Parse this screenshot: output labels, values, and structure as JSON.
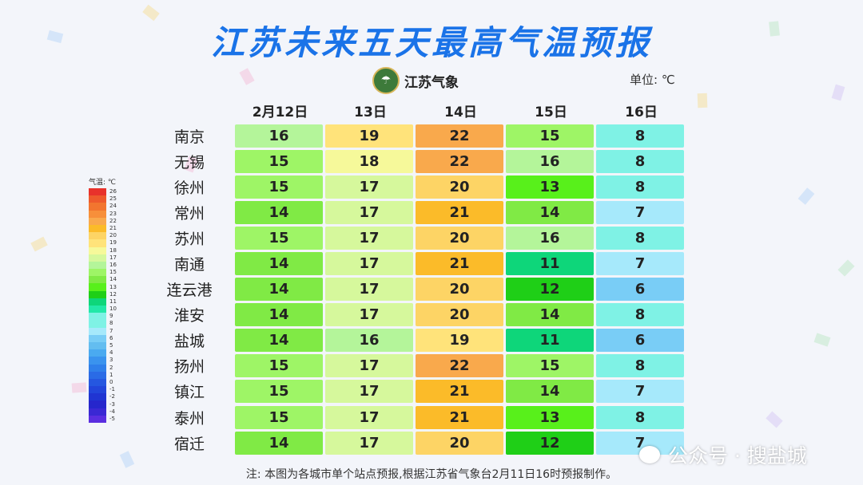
{
  "title": "江苏未来五天最高气温预报",
  "logo_text": "江苏气象",
  "unit": "单位: ℃",
  "days": [
    "2月12日",
    "13日",
    "14日",
    "15日",
    "16日"
  ],
  "cities": [
    {
      "name": "南京",
      "temps": [
        16,
        19,
        22,
        15,
        8
      ]
    },
    {
      "name": "无锡",
      "temps": [
        15,
        18,
        22,
        16,
        8
      ]
    },
    {
      "name": "徐州",
      "temps": [
        15,
        17,
        20,
        13,
        8
      ]
    },
    {
      "name": "常州",
      "temps": [
        14,
        17,
        21,
        14,
        7
      ]
    },
    {
      "name": "苏州",
      "temps": [
        15,
        17,
        20,
        16,
        8
      ]
    },
    {
      "name": "南通",
      "temps": [
        14,
        17,
        21,
        11,
        7
      ]
    },
    {
      "name": "连云港",
      "temps": [
        14,
        17,
        20,
        12,
        6
      ]
    },
    {
      "name": "淮安",
      "temps": [
        14,
        17,
        20,
        14,
        8
      ]
    },
    {
      "name": "盐城",
      "temps": [
        14,
        16,
        19,
        11,
        6
      ]
    },
    {
      "name": "扬州",
      "temps": [
        15,
        17,
        22,
        15,
        8
      ]
    },
    {
      "name": "镇江",
      "temps": [
        15,
        17,
        21,
        14,
        7
      ]
    },
    {
      "name": "泰州",
      "temps": [
        15,
        17,
        21,
        13,
        8
      ]
    },
    {
      "name": "宿迁",
      "temps": [
        14,
        17,
        20,
        12,
        7
      ]
    }
  ],
  "legend": {
    "title": "气温: ℃",
    "labels": [
      "26",
      "25",
      "24",
      "23",
      "22",
      "21",
      "20",
      "19",
      "18",
      "17",
      "16",
      "15",
      "14",
      "13",
      "12",
      "11",
      "10",
      "9",
      "8",
      "7",
      "6",
      "5",
      "4",
      "3",
      "2",
      "1",
      "0",
      "-1",
      "-2",
      "-3",
      "-4",
      "-5"
    ]
  },
  "colors": {
    "26": "#e8322b",
    "25": "#ee5a2c",
    "24": "#f2752f",
    "23": "#f78f3a",
    "22": "#f9a94c",
    "21": "#fbbb29",
    "20": "#fdd465",
    "19": "#ffe37a",
    "18": "#f6f99a",
    "17": "#d6f89c",
    "16": "#b4f59a",
    "15": "#9ef566",
    "14": "#80ea45",
    "13": "#58f01b",
    "12": "#1fcf17",
    "11": "#0ed67a",
    "10": "#22e8a8",
    "9": "#7ff2e5",
    "8": "#7ff2e5",
    "7": "#a6e9fb",
    "6": "#79cdf6",
    "5": "#63bdf0",
    "4": "#4aaaf0",
    "3": "#3a93ee",
    "2": "#2f7fea",
    "1": "#2a6be6",
    "0": "#2557e0",
    "-1": "#2245da",
    "-2": "#2035d2",
    "-3": "#2626cc",
    "-4": "#3a28d4",
    "-5": "#5a2ee0"
  },
  "note": "注: 本图为各城市单个站点预报,根据江苏省气象台2月11日16时预报制作。",
  "watermark": "公众号 · 搜盐城"
}
